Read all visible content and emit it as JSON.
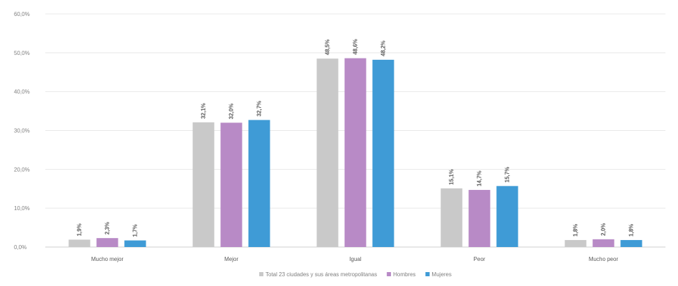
{
  "chart_data": {
    "type": "bar",
    "categories": [
      "Mucho mejor",
      "Mejor",
      "Igual",
      "Peor",
      "Mucho peor"
    ],
    "series": [
      {
        "name": "Total 23 ciudades y sus áreas metropolitanas",
        "color": "#c9c9c9",
        "values": [
          1.9,
          32.1,
          48.5,
          15.1,
          1.8
        ],
        "labels": [
          "1,9%",
          "32,1%",
          "48,5%",
          "15,1%",
          "1,8%"
        ]
      },
      {
        "name": "Hombres",
        "color": "#b88ac6",
        "values": [
          2.3,
          32.0,
          48.6,
          14.7,
          2.0
        ],
        "labels": [
          "2,3%",
          "32,0%",
          "48,6%",
          "14,7%",
          "2,0%"
        ]
      },
      {
        "name": "Mujeres",
        "color": "#3f9bd6",
        "values": [
          1.7,
          32.7,
          48.2,
          15.7,
          1.8
        ],
        "labels": [
          "1,7%",
          "32,7%",
          "48,2%",
          "15,7%",
          "1,8%"
        ]
      }
    ],
    "yticks": [
      "0,0%",
      "10,0%",
      "20,0%",
      "30,0%",
      "40,0%",
      "50,0%",
      "60,0%"
    ],
    "ylim": [
      0,
      60
    ],
    "grid": true,
    "legend": "bottom"
  }
}
